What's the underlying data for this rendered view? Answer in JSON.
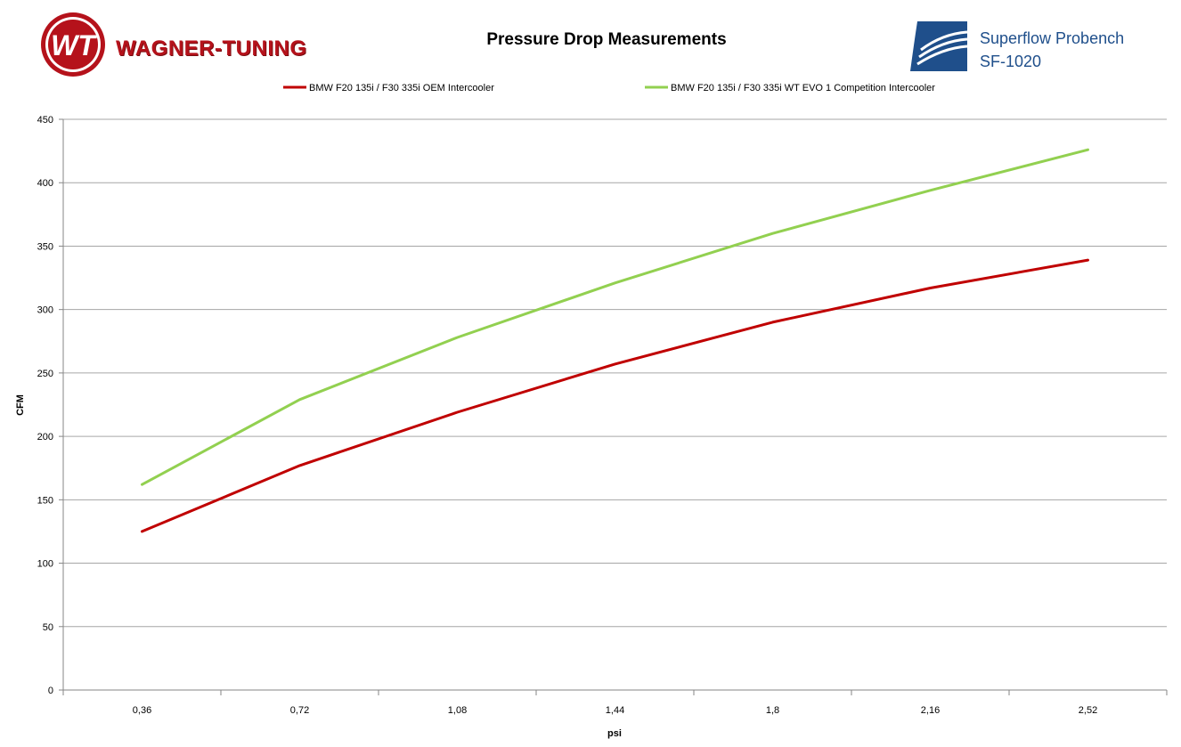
{
  "header": {
    "brand_name": "WAGNER-TUNING",
    "brand_mark": "WT",
    "bench_line1": "Superflow Probench",
    "bench_line2": "SF-1020"
  },
  "colors": {
    "brand_red": "#b5121b",
    "bench_blue": "#1f4f8b",
    "gridline": "#a6a6a6",
    "axis": "#868686"
  },
  "chart_data": {
    "type": "line",
    "title": "Pressure Drop Measurements",
    "xlabel": "psi",
    "ylabel": "CFM",
    "categories": [
      "0,36",
      "0,72",
      "1,08",
      "1,44",
      "1,8",
      "2,16",
      "2,52"
    ],
    "ylim": [
      0,
      450
    ],
    "yticks": [
      0,
      50,
      100,
      150,
      200,
      250,
      300,
      350,
      400,
      450
    ],
    "grid": "horizontal",
    "legend_position": "top",
    "series": [
      {
        "name": "BMW F20 135i / F30 335i OEM Intercooler",
        "color": "#c00000",
        "values": [
          125,
          177,
          219,
          257,
          290,
          317,
          339
        ]
      },
      {
        "name": "BMW F20 135i / F30 335i WT EVO 1 Competition Intercooler",
        "color": "#92d050",
        "values": [
          162,
          229,
          278,
          321,
          360,
          394,
          426
        ]
      }
    ]
  }
}
